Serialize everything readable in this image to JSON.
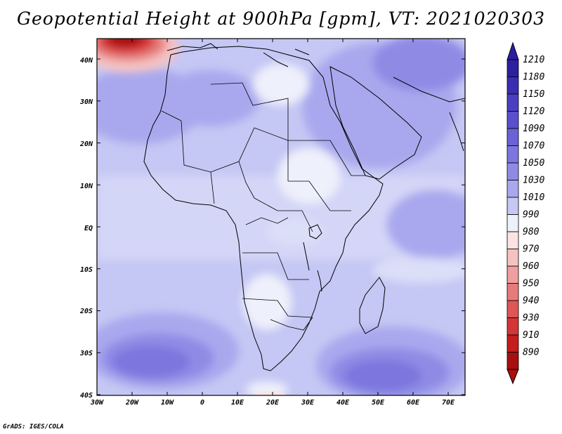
{
  "title": "Geopotential Height at 900hPa [gpm], VT: 2021020303",
  "footer": "GrADS: IGES/COLA",
  "map": {
    "region": "Africa",
    "lon_range": [
      -30,
      75
    ],
    "lat_range": [
      -40,
      45
    ],
    "lon_ticks": [
      "30W",
      "20W",
      "10W",
      "0",
      "10E",
      "20E",
      "30E",
      "40E",
      "50E",
      "60E",
      "70E"
    ],
    "lat_ticks": [
      "40N",
      "30N",
      "20N",
      "10N",
      "EQ",
      "10S",
      "20S",
      "30S",
      "40S"
    ]
  },
  "legend": {
    "levels": [
      "1210",
      "1180",
      "1150",
      "1120",
      "1090",
      "1070",
      "1050",
      "1030",
      "1010",
      "990",
      "980",
      "970",
      "960",
      "950",
      "940",
      "930",
      "910",
      "890"
    ],
    "colors": [
      "#2c1fa0",
      "#3a2db2",
      "#4b3fc1",
      "#5a4fcc",
      "#6b62d6",
      "#7c76de",
      "#8f8be5",
      "#a9a8ee",
      "#c5c7f4",
      "#eef0fb",
      "#fbe3e3",
      "#f5c2c2",
      "#ef9f9f",
      "#e77b7b",
      "#de5656",
      "#d43535",
      "#c31d1d",
      "#a80f0f"
    ]
  },
  "chart_data": {
    "type": "heatmap",
    "title": "Geopotential Height at 900hPa [gpm], VT: 2021020303",
    "xlabel": "",
    "ylabel": "",
    "x_ticks": [
      "30W",
      "20W",
      "10W",
      "0",
      "10E",
      "20E",
      "30E",
      "40E",
      "50E",
      "60E",
      "70E"
    ],
    "y_ticks": [
      "40N",
      "30N",
      "20N",
      "10N",
      "EQ",
      "10S",
      "20S",
      "30S",
      "40S"
    ],
    "colorbar_levels": [
      890,
      910,
      930,
      940,
      950,
      960,
      970,
      980,
      990,
      1010,
      1030,
      1050,
      1070,
      1090,
      1120,
      1150,
      1180,
      1210
    ],
    "colorbar_units": "gpm"
  }
}
